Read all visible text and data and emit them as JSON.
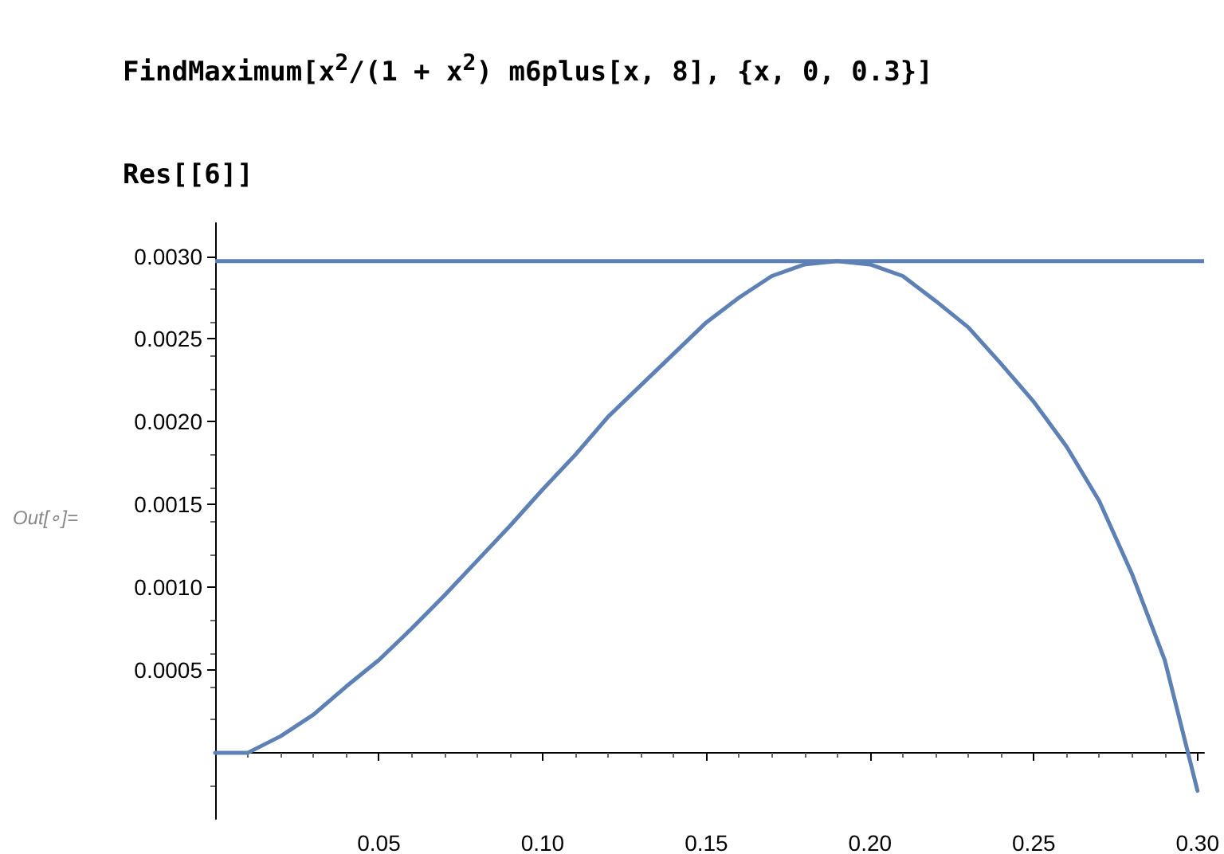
{
  "chart_data": {
    "type": "line",
    "annotations": [
      "FindMaximum[x$^{2}$/(1 + x$^{2}$) m6plus[x, 8], {x, 0, 0.3}]",
      "Res[[6]]",
      "Out[∘]="
    ],
    "x": [
      0,
      0.01,
      0.02,
      0.03,
      0.04,
      0.05,
      0.06,
      0.07,
      0.08,
      0.09,
      0.1,
      0.11,
      0.12,
      0.13,
      0.14,
      0.15,
      0.16,
      0.17,
      0.18,
      0.19,
      0.2,
      0.21,
      0.22,
      0.23,
      0.24,
      0.25,
      0.26,
      0.27,
      0.28,
      0.29,
      0.3
    ],
    "series": [
      {
        "color": "#5e81b5",
        "values": [
          0,
          0,
          0.0001,
          0.00023,
          0.0004,
          0.00056,
          0.00075,
          0.00095,
          0.00116,
          0.00137,
          0.00159,
          0.0018,
          0.00203,
          0.00222,
          0.00241,
          0.0026,
          0.00275,
          0.00288,
          0.00295,
          0.00297,
          0.00295,
          0.00288,
          0.00273,
          0.00257,
          0.00235,
          0.00212,
          0.00185,
          0.00152,
          0.00108,
          0.00056,
          -0.00023
        ]
      }
    ],
    "ref_lines": [
      {
        "axis": "y",
        "value": 0.00297,
        "color": "#5e81b5"
      }
    ],
    "xlim": [
      0,
      0.302
    ],
    "ylim": [
      -0.0004,
      0.0032
    ],
    "xticks": [
      {
        "value": 0.05,
        "label": "0.05"
      },
      {
        "value": 0.1,
        "label": "0.10"
      },
      {
        "value": 0.15,
        "label": "0.15"
      },
      {
        "value": 0.2,
        "label": "0.20"
      },
      {
        "value": 0.25,
        "label": "0.25"
      },
      {
        "value": 0.3,
        "label": "0.30"
      }
    ],
    "yticks": [
      {
        "value": 0.0005,
        "label": "0.0005"
      },
      {
        "value": 0.001,
        "label": "0.0010"
      },
      {
        "value": 0.0015,
        "label": "0.0015"
      },
      {
        "value": 0.002,
        "label": "0.0020"
      },
      {
        "value": 0.0025,
        "label": "0.0025"
      },
      {
        "value": 0.003,
        "label": "0.0030"
      }
    ],
    "grid": false,
    "marker": "none",
    "line_style": "solid"
  }
}
